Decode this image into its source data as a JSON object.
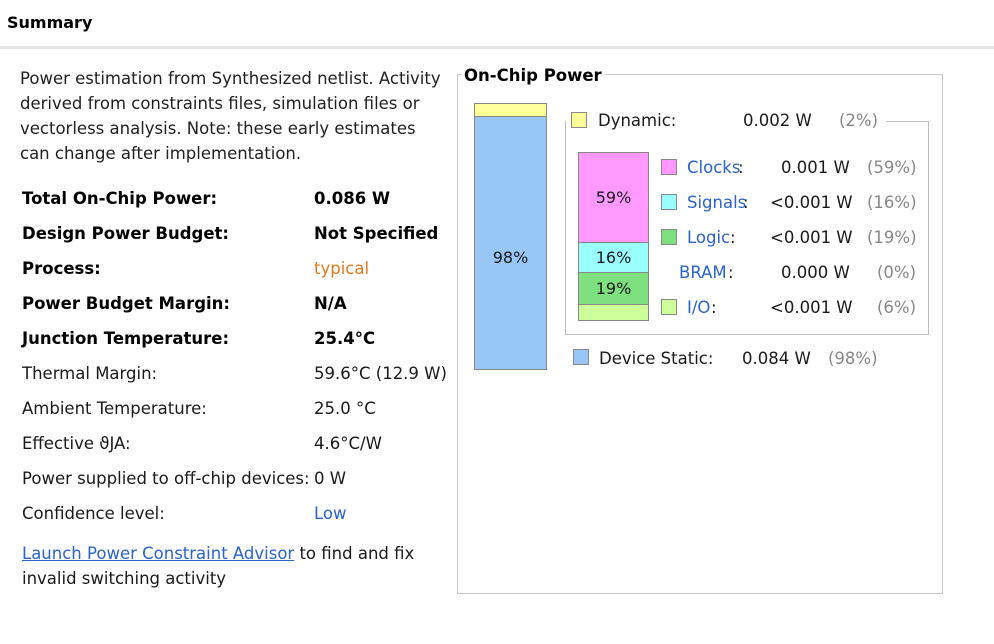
{
  "header": {
    "title": "Summary"
  },
  "description": "Power estimation from Synthesized netlist. Activity derived from constraints files, simulation files or vectorless analysis. Note: these early estimates can change after implementation.",
  "summary_rows": [
    {
      "label": "Total On-Chip Power:",
      "value": "0.086 W"
    },
    {
      "label": "Design Power Budget:",
      "value": "Not Specified"
    },
    {
      "label": "Process:",
      "value": "typical"
    },
    {
      "label": "Power Budget Margin:",
      "value": "N/A"
    },
    {
      "label": "Junction Temperature:",
      "value": "25.4°C"
    },
    {
      "label": "Thermal Margin:",
      "value": "59.6°C (12.9 W)"
    },
    {
      "label": "Ambient Temperature:",
      "value": "25.0 °C"
    },
    {
      "label": "Effective ϑJA:",
      "value": "4.6°C/W"
    },
    {
      "label": "Power supplied to off-chip devices:",
      "value": "0 W"
    },
    {
      "label": "Confidence level:",
      "value": "Low"
    }
  ],
  "advisor": {
    "link": "Launch Power Constraint Advisor",
    "text": " to find and fix invalid switching activity"
  },
  "panel": {
    "title": "On-Chip Power",
    "main_bar": {
      "static_label": "98%",
      "dynamic_fraction": 0.02,
      "static_fraction": 0.98
    },
    "dynamic": {
      "label": "Dynamic:",
      "value": "0.002 W",
      "pct": "(2%)",
      "color": "#ffff99"
    },
    "device_static": {
      "label": "Device Static:",
      "value": "0.084 W",
      "pct": "(98%)",
      "color": "#99c7f5"
    },
    "breakdown": [
      {
        "label": "Clocks",
        "value": "0.001 W",
        "pct": "(59%)",
        "color": "#ff99ff",
        "bar_label": "59%",
        "fraction": 0.59
      },
      {
        "label": "Signals",
        "value": "<0.001 W",
        "pct": "(16%)",
        "color": "#99ffff",
        "bar_label": "16%",
        "fraction": 0.16
      },
      {
        "label": "Logic",
        "value": "<0.001 W",
        "pct": "(19%)",
        "color": "#7fe07f",
        "bar_label": "19%",
        "fraction": 0.19
      },
      {
        "label": "BRAM",
        "value": "0.000 W",
        "pct": "(0%)",
        "color": "",
        "bar_label": "",
        "fraction": 0.0
      },
      {
        "label": "I/O",
        "value": "<0.001 W",
        "pct": "(6%)",
        "color": "#ccff99",
        "bar_label": "",
        "fraction": 0.06
      }
    ],
    "colon": ":"
  }
}
